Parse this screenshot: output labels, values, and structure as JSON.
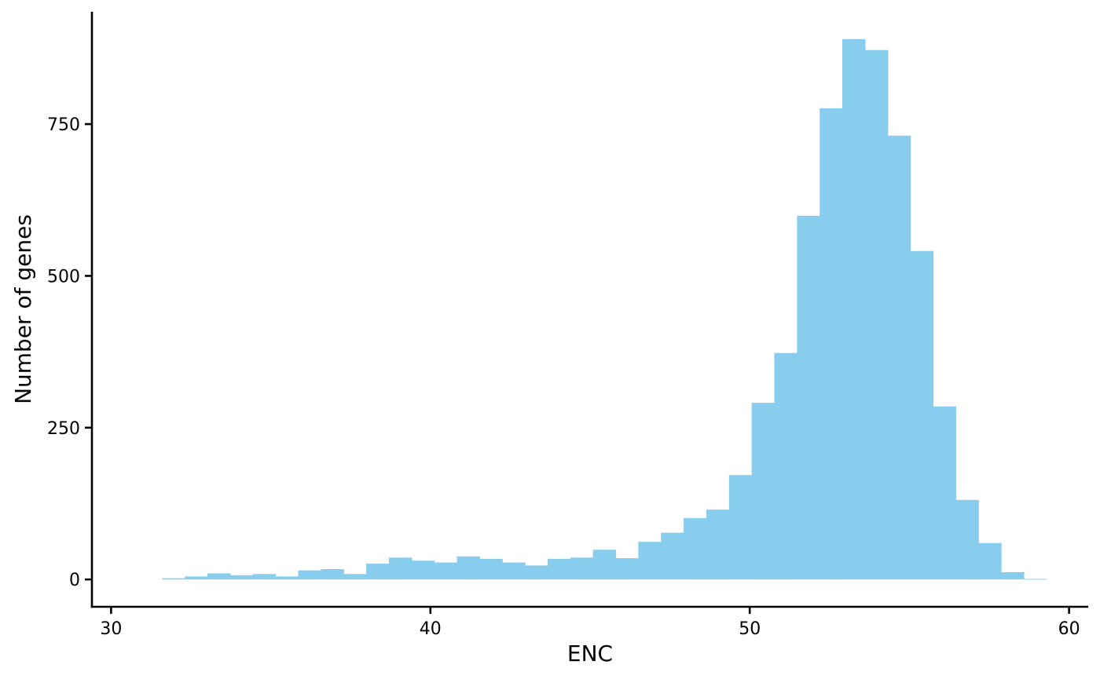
{
  "chart_data": {
    "type": "bar",
    "subtype": "histogram",
    "title": "",
    "xlabel": "ENC",
    "ylabel": "Number of genes",
    "bar_color": "#89CDEE",
    "axis_color": "#000000",
    "grid": false,
    "legend": "none",
    "bin_width": 0.71,
    "x_start": 31.6,
    "counts": [
      2,
      5,
      10,
      7,
      9,
      5,
      15,
      17,
      9,
      26,
      36,
      31,
      28,
      38,
      34,
      28,
      23,
      34,
      36,
      49,
      35,
      62,
      77,
      101,
      115,
      172,
      291,
      373,
      599,
      776,
      890,
      872,
      731,
      541,
      285,
      131,
      60,
      12,
      1
    ],
    "xlim": [
      29.4,
      60.6
    ],
    "ylim": [
      -45,
      935
    ],
    "xticks": [
      30,
      40,
      50,
      60
    ],
    "xtick_labels": [
      "30",
      "40",
      "50",
      "60"
    ],
    "yticks": [
      0,
      250,
      500,
      750
    ],
    "ytick_labels": [
      "0",
      "250",
      "500",
      "750"
    ]
  }
}
